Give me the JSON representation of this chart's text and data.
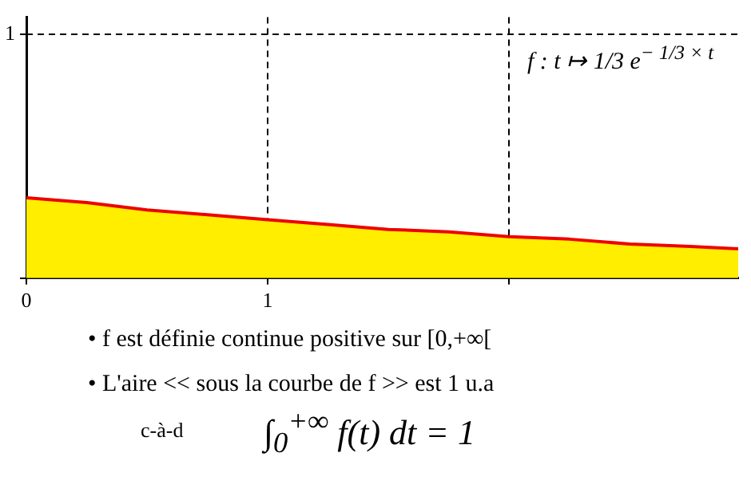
{
  "chart_data": {
    "type": "area",
    "x": [
      0,
      0.25,
      0.5,
      0.75,
      1,
      1.25,
      1.5,
      1.75,
      2,
      2.25,
      2.5,
      2.75,
      2.95
    ],
    "series": [
      {
        "color": "#ffee00",
        "values": [
          0.33,
          0.31,
          0.28,
          0.26,
          0.24,
          0.22,
          0.2,
          0.19,
          0.17,
          0.16,
          0.14,
          0.13,
          0.12
        ]
      }
    ],
    "xlim": [
      0,
      2.95
    ],
    "xticks": [
      0,
      1,
      {
        "value": 2,
        "label": null
      }
    ],
    "ylim": [
      0,
      1.07
    ],
    "yticks": [
      {
        "value": 0,
        "label": null
      },
      1
    ],
    "ref_lines": [
      {
        "axis": "y",
        "value": 1,
        "line_style": "dashed",
        "color": "#000000"
      }
    ],
    "grid": "x",
    "legend": false,
    "marker": "none",
    "annotations": [
      "f : t ↦ 1/3 e$^{− 1/3 × t}$",
      "• f est définie continue positive sur [0,+∞[",
      "• L'aire << sous la courbe de f >> est 1 u.a",
      "c-à-d",
      "∫$_{0}$$^{+∞}$ f(t) dt = 1"
    ]
  }
}
